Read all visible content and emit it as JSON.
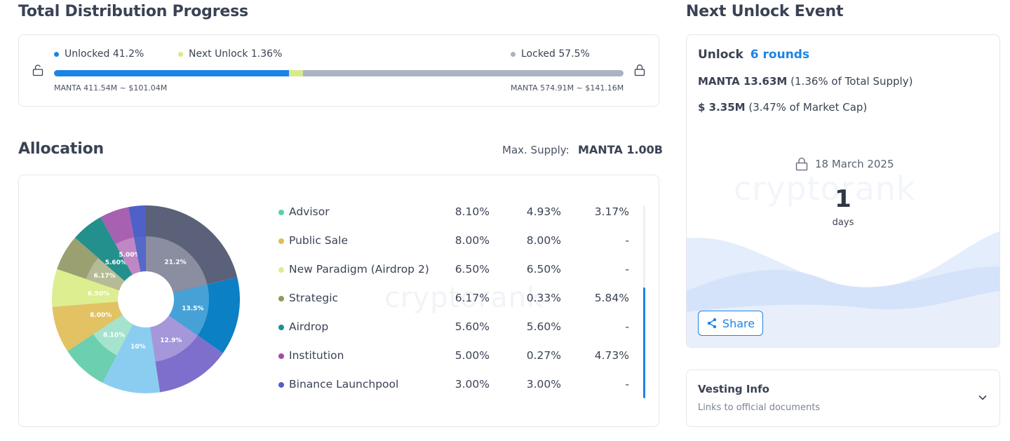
{
  "progress": {
    "title": "Total Distribution Progress",
    "unlocked_label": "Unlocked 41.2%",
    "next_unlock_label": "Next Unlock 1.36%",
    "locked_label": "Locked 57.5%",
    "unlocked_pct": 41.2,
    "next_unlock_pct": 1.36,
    "locked_pct": 57.5,
    "unlocked_sub": "MANTA 411.54M ~ $101.04M",
    "locked_sub": "MANTA 574.91M ~ $141.16M",
    "colors": {
      "unlocked": "#1b84e6",
      "next": "#d6ea8e",
      "locked": "#abb2c0"
    }
  },
  "allocation": {
    "title": "Allocation",
    "max_supply_label": "Max. Supply:",
    "max_supply_value": "MANTA 1.00B",
    "watermark": "cryptorank",
    "rows": [
      {
        "name": "Advisor",
        "c1": "8.10%",
        "c2": "4.93%",
        "c3": "3.17%",
        "color": "#5fcfa6"
      },
      {
        "name": "Public Sale",
        "c1": "8.00%",
        "c2": "8.00%",
        "c3": "-",
        "color": "#e1bd4e"
      },
      {
        "name": "New Paradigm (Airdrop 2)",
        "c1": "6.50%",
        "c2": "6.50%",
        "c3": "-",
        "color": "#dcee90"
      },
      {
        "name": "Strategic",
        "c1": "6.17%",
        "c2": "0.33%",
        "c3": "5.84%",
        "color": "#8c9a5c"
      },
      {
        "name": "Airdrop",
        "c1": "5.60%",
        "c2": "5.60%",
        "c3": "-",
        "color": "#1e9090"
      },
      {
        "name": "Institution",
        "c1": "5.00%",
        "c2": "0.27%",
        "c3": "4.73%",
        "color": "#a34ba6"
      },
      {
        "name": "Binance Launchpool",
        "c1": "3.00%",
        "c2": "3.00%",
        "c3": "-",
        "color": "#4f60c8"
      }
    ]
  },
  "chart_data": {
    "type": "pie",
    "title": "Allocation",
    "slices": [
      {
        "label": "21.2%",
        "value": 21.2,
        "color": "#5b6178",
        "inner": "#8a8ea0"
      },
      {
        "label": "13.5%",
        "value": 13.5,
        "color": "#0b80c4",
        "inner": "#46a2d6"
      },
      {
        "label": "12.9%",
        "value": 12.9,
        "color": "#7f6fcc",
        "inner": "#a597da"
      },
      {
        "label": "10%",
        "value": 10,
        "color": "#8bcdf1",
        "inner": "#8bcdf1"
      },
      {
        "label": "8.10%",
        "value": 8.1,
        "color": "#6ccfb0",
        "inner": "#a5e3ce"
      },
      {
        "label": "8.00%",
        "value": 8.0,
        "color": "#e2c263",
        "inner": "#e2c263"
      },
      {
        "label": "6.50%",
        "value": 6.5,
        "color": "#dcee90",
        "inner": "#dcee90"
      },
      {
        "label": "6.17%",
        "value": 6.17,
        "color": "#9aa070",
        "inner": "#b5bb97"
      },
      {
        "label": "5.60%",
        "value": 5.6,
        "color": "#24908e",
        "inner": "#24908e"
      },
      {
        "label": "5.00%",
        "value": 5.0,
        "color": "#a860b0",
        "inner": "#bf87c5"
      },
      {
        "label": "",
        "value": 3.0,
        "color": "#4f60c8",
        "inner": "#5668c8"
      }
    ]
  },
  "unlock": {
    "title": "Next Unlock Event",
    "unlock_label": "Unlock",
    "rounds": "6 rounds",
    "tokens_bold": "MANTA 13.63M",
    "tokens_rest": "(1.36% of Total Supply)",
    "usd_bold": "$ 3.35M",
    "usd_rest": "(3.47% of Market Cap)",
    "date": "18 March 2025",
    "days_num": "1",
    "days_label": "days",
    "share_label": "Share",
    "watermark": "cryptorank"
  },
  "vesting": {
    "title": "Vesting Info",
    "subtitle": "Links to official documents"
  }
}
